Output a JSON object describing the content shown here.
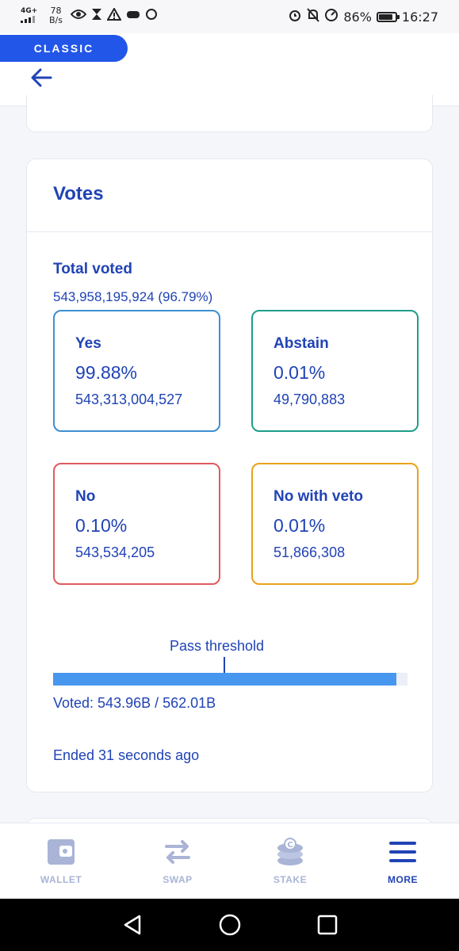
{
  "status_bar": {
    "network": "4G+",
    "speed_value": "78",
    "speed_unit": "B/s",
    "battery": "86%",
    "battery_level": 0.86,
    "time": "16:27"
  },
  "header": {
    "badge": "CLASSIC"
  },
  "votes": {
    "title": "Votes",
    "total_label": "Total voted",
    "total_value": "543,958,195,924 (96.79%)",
    "options": [
      {
        "label": "Yes",
        "percent": "99.88%",
        "amount": "543,313,004,527",
        "color": "#3d8fd1"
      },
      {
        "label": "Abstain",
        "percent": "0.01%",
        "amount": "49,790,883",
        "color": "#1e9e8a"
      },
      {
        "label": "No",
        "percent": "0.10%",
        "amount": "543,534,205",
        "color": "#e05a5f"
      },
      {
        "label": "No with veto",
        "percent": "0.01%",
        "amount": "51,866,308",
        "color": "#e8a21a"
      }
    ],
    "threshold_label": "Pass threshold",
    "voted_fraction": 0.9679,
    "voted_text": "Voted: 543.96B / 562.01B",
    "ended_text": "Ended 31 seconds ago"
  },
  "bottom_nav": {
    "items": [
      {
        "label": "WALLET",
        "icon": "wallet-icon",
        "active": false
      },
      {
        "label": "SWAP",
        "icon": "swap-icon",
        "active": false
      },
      {
        "label": "STAKE",
        "icon": "stake-icon",
        "active": false
      },
      {
        "label": "MORE",
        "icon": "menu-icon",
        "active": true
      }
    ]
  },
  "colors": {
    "primary": "#2043b5",
    "accent": "#2256e8",
    "bar": "#4897ee",
    "inactive": "#a9b4d6"
  }
}
